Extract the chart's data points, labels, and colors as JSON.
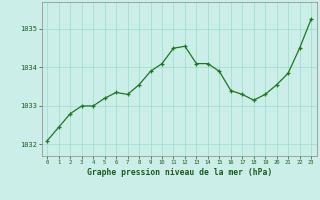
{
  "x": [
    0,
    1,
    2,
    3,
    4,
    5,
    6,
    7,
    8,
    9,
    10,
    11,
    12,
    13,
    14,
    15,
    16,
    17,
    18,
    19,
    20,
    21,
    22,
    23
  ],
  "y": [
    1032.1,
    1032.45,
    1032.8,
    1033.0,
    1033.0,
    1033.2,
    1033.35,
    1033.3,
    1033.55,
    1033.9,
    1034.1,
    1034.5,
    1034.55,
    1034.1,
    1034.1,
    1033.9,
    1033.4,
    1033.3,
    1033.15,
    1033.3,
    1033.55,
    1033.85,
    1034.5,
    1035.25
  ],
  "line_color": "#1a7a1a",
  "marker": "+",
  "marker_size": 3,
  "bg_color": "#cceee8",
  "grid_color": "#99ddcc",
  "xlabel": "Graphe pression niveau de la mer (hPa)",
  "xlabel_color": "#1a5c1a",
  "ylabel_ticks": [
    1032,
    1033,
    1034,
    1035
  ],
  "xlim": [
    -0.5,
    23.5
  ],
  "ylim": [
    1031.7,
    1035.7
  ],
  "tick_color": "#1a5c1a",
  "tick_label_color": "#1a5c1a",
  "spine_color": "#888888"
}
